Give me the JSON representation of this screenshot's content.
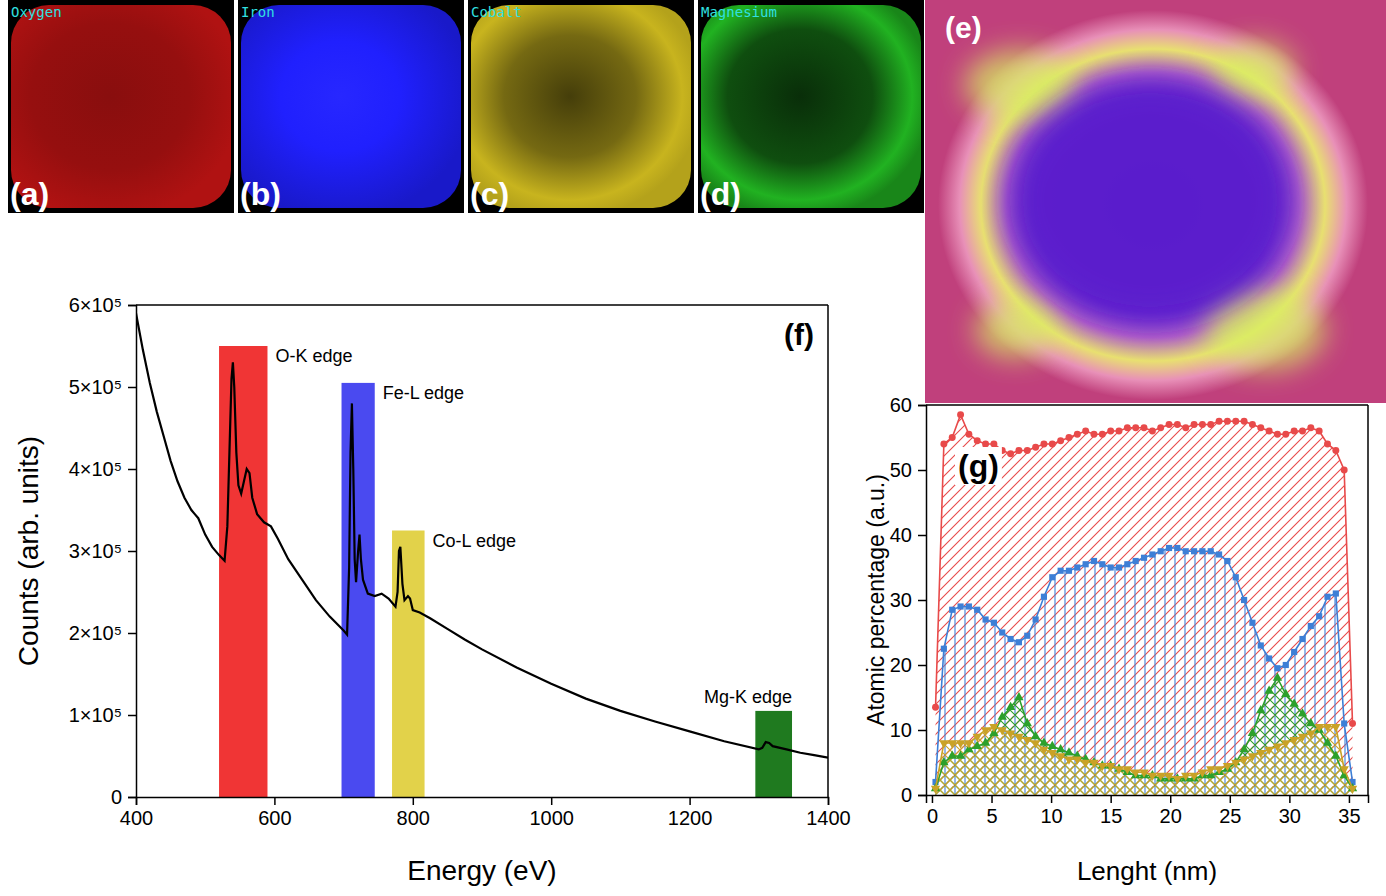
{
  "element_maps": {
    "panels": [
      {
        "panel": "(a)",
        "label": "Oxygen",
        "color": "#b01212"
      },
      {
        "panel": "(b)",
        "label": "Iron",
        "color": "#1c1ce0"
      },
      {
        "panel": "(c)",
        "label": "Cobalt",
        "color": "#c8b41e"
      },
      {
        "panel": "(d)",
        "label": "Magnesium",
        "color": "#1ea01e"
      }
    ],
    "overlay": {
      "panel": "(e)"
    }
  },
  "chart_data": [
    {
      "type": "line",
      "panel": "(f)",
      "x_label": "Energy (eV)",
      "y_label": "Counts (arb. units)",
      "x": [
        400,
        410,
        420,
        430,
        440,
        450,
        460,
        470,
        480,
        485,
        490,
        500,
        510,
        520,
        528,
        532,
        535,
        538,
        540,
        542,
        545,
        548,
        552,
        556,
        560,
        564,
        568,
        575,
        585,
        595,
        605,
        620,
        640,
        660,
        680,
        700,
        705,
        708,
        710,
        712,
        714,
        716,
        718,
        721,
        723,
        725,
        728,
        735,
        745,
        755,
        765,
        775,
        778,
        780,
        782,
        785,
        788,
        793,
        796,
        800,
        810,
        825,
        850,
        875,
        900,
        950,
        1000,
        1050,
        1100,
        1150,
        1200,
        1250,
        1300,
        1305,
        1310,
        1315,
        1320,
        1340,
        1360,
        1380,
        1400
      ],
      "series": [
        {
          "color": "#000000",
          "values": [
            590000,
            545000,
            505000,
            470000,
            440000,
            410000,
            385000,
            365000,
            350000,
            345000,
            340000,
            320000,
            305000,
            295000,
            288000,
            330000,
            420000,
            510000,
            530000,
            500000,
            420000,
            380000,
            370000,
            385000,
            400000,
            395000,
            365000,
            345000,
            335000,
            330000,
            315000,
            290000,
            265000,
            240000,
            220000,
            203000,
            198000,
            280000,
            420000,
            480000,
            400000,
            290000,
            262000,
            300000,
            320000,
            290000,
            265000,
            248000,
            245000,
            248000,
            242000,
            232000,
            250000,
            300000,
            305000,
            260000,
            240000,
            245000,
            242000,
            228000,
            225000,
            218000,
            205000,
            192000,
            180000,
            158000,
            138000,
            120000,
            105000,
            92000,
            80000,
            68000,
            58000,
            60000,
            67000,
            66000,
            62000,
            58000,
            54000,
            51000,
            48000
          ]
        }
      ],
      "annotations": [
        {
          "text": "O-K edge",
          "x": [
            520,
            590
          ],
          "y": 550000,
          "color": "#f03535"
        },
        {
          "text": "Fe-L edge",
          "x": [
            697,
            745
          ],
          "y": 505000,
          "color": "#4a4af0"
        },
        {
          "text": "Co-L edge",
          "x": [
            770,
            817
          ],
          "y": 325000,
          "color": "#e2d24a"
        },
        {
          "text": "Mg-K edge",
          "x": [
            1295,
            1348
          ],
          "y": 105000,
          "color": "#1f7a1f"
        }
      ],
      "xlim": [
        400,
        1400
      ],
      "xticks": [
        400,
        600,
        800,
        1000,
        1200,
        1400
      ],
      "ylim": [
        0,
        600000
      ],
      "yticks": [
        0,
        {
          "value": 100000,
          "label": "1×10⁵"
        },
        {
          "value": 200000,
          "label": "2×10⁵"
        },
        {
          "value": 300000,
          "label": "3×10⁵"
        },
        {
          "value": 400000,
          "label": "4×10⁵"
        },
        {
          "value": 500000,
          "label": "5×10⁵"
        },
        {
          "value": 600000,
          "label": "6×10⁵"
        }
      ]
    },
    {
      "type": "area",
      "panel": "(g)",
      "x_label": "Lenght (nm)",
      "y_label": "Atomic percentage (a.u.)",
      "x": [
        0.3,
        1.0,
        1.7,
        2.4,
        3.1,
        3.8,
        4.5,
        5.2,
        5.9,
        6.6,
        7.3,
        8.0,
        8.7,
        9.4,
        10.1,
        10.8,
        11.5,
        12.2,
        12.9,
        13.6,
        14.3,
        15.0,
        15.7,
        16.4,
        17.1,
        17.8,
        18.5,
        19.2,
        19.9,
        20.6,
        21.3,
        22.0,
        22.7,
        23.4,
        24.1,
        24.8,
        25.5,
        26.2,
        26.9,
        27.6,
        28.3,
        29.0,
        29.7,
        30.4,
        31.1,
        31.8,
        32.5,
        33.2,
        33.9,
        34.6,
        35.3
      ],
      "series": [
        {
          "color": "#e84a4a",
          "marker": "circle",
          "values": [
            13.5,
            54,
            55,
            58.5,
            55.5,
            54.5,
            54,
            54,
            53,
            52.5,
            53,
            53,
            53.5,
            54,
            54,
            54.5,
            55,
            55.5,
            56,
            55.5,
            55.5,
            56,
            56,
            56.5,
            56.5,
            56.5,
            56,
            56.5,
            57,
            57,
            56.5,
            57,
            57,
            57,
            57.5,
            57.5,
            57.5,
            57.5,
            57,
            56.5,
            56,
            55.5,
            55.5,
            56,
            56,
            56.5,
            56,
            54,
            53,
            50,
            11
          ]
        },
        {
          "color": "#3d7fd6",
          "marker": "square",
          "values": [
            2,
            22.5,
            28.5,
            29,
            29,
            28.5,
            27,
            26.5,
            25,
            24,
            23.5,
            24.5,
            27,
            30.5,
            33.5,
            34.5,
            34.5,
            35,
            35.5,
            36,
            35.5,
            35,
            35,
            35.5,
            36,
            36.5,
            37,
            37.5,
            38,
            38,
            37.5,
            37.5,
            37.5,
            37.5,
            37,
            36,
            33.5,
            30,
            26.5,
            23,
            21,
            19.5,
            20,
            22,
            24,
            26,
            27.5,
            30.5,
            31,
            11,
            2
          ]
        },
        {
          "color": "#2ca02c",
          "marker": "triangle",
          "values": [
            1,
            5,
            6,
            6,
            7,
            7.5,
            8,
            9.5,
            12,
            13.5,
            15,
            11,
            9,
            8,
            7.5,
            7,
            6.5,
            6,
            5.5,
            5,
            4.5,
            4.5,
            4,
            3.5,
            3,
            3,
            3,
            2.5,
            2.5,
            2.5,
            2.5,
            2.5,
            3,
            3,
            3.5,
            4,
            5,
            7,
            9.5,
            13,
            16,
            18,
            15.5,
            14,
            12.5,
            11,
            10,
            8,
            6,
            3,
            1
          ]
        },
        {
          "color": "#c9a227",
          "marker": "triangle-down",
          "values": [
            1,
            8,
            8,
            8,
            8,
            9,
            10,
            10.5,
            10,
            9.5,
            9,
            8.5,
            8,
            7,
            6.5,
            6,
            5.5,
            5.5,
            5,
            5,
            4.5,
            4.5,
            4,
            4,
            3.5,
            3.5,
            3,
            3,
            3,
            2.5,
            3,
            3,
            3.5,
            4,
            4,
            4.5,
            5,
            5.5,
            6,
            6.5,
            7,
            7.5,
            8,
            8.5,
            9,
            9.5,
            10.5,
            10.5,
            10.5,
            4,
            1
          ]
        }
      ],
      "xlim": [
        -0.5,
        36.6
      ],
      "xticks": [
        0,
        5,
        10,
        15,
        20,
        25,
        30,
        35
      ],
      "ylim": [
        0,
        60
      ],
      "yticks": [
        0,
        10,
        20,
        30,
        40,
        50,
        60
      ]
    }
  ]
}
